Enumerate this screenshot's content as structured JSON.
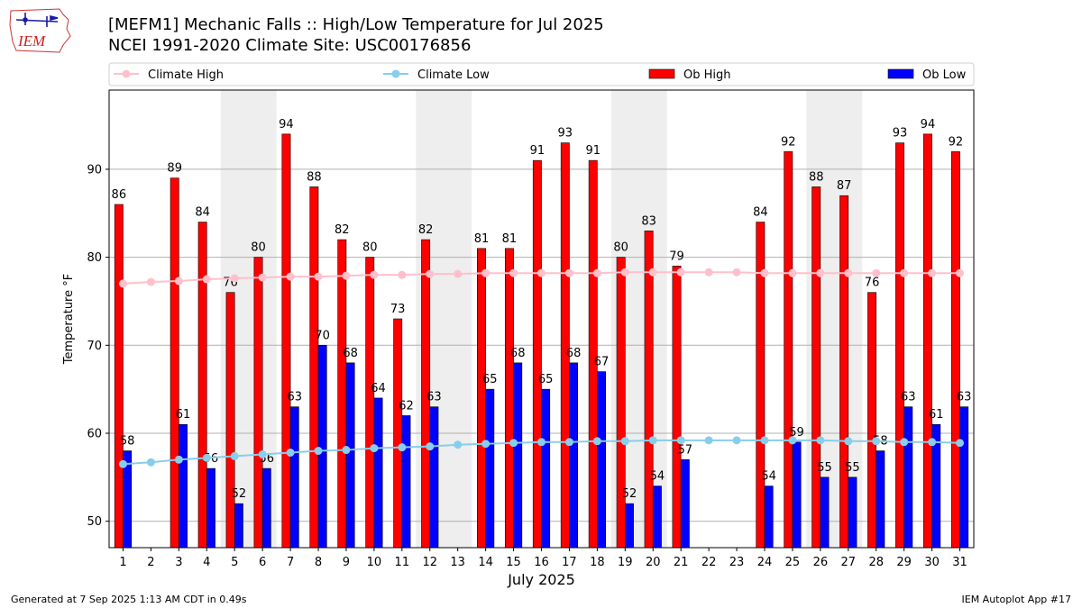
{
  "logo_text": "IEM",
  "title_line1": "[MEFM1] Mechanic Falls :: High/Low Temperature for Jul 2025",
  "title_line2": "NCEI 1991-2020 Climate Site: USC00176856",
  "footer_left": "Generated at 7 Sep 2025 1:13 AM CDT in 0.49s",
  "footer_right": "IEM Autoplot App #17",
  "colors": {
    "ob_high": "#ff0000",
    "ob_low": "#0000ff",
    "climate_high": "#ffc0cb",
    "climate_low": "#87ceeb",
    "weekend_shade": "#eeeeee",
    "grid": "#b0b0b0"
  },
  "chart_data": {
    "type": "bar",
    "xlabel": "July 2025",
    "ylabel": "Temperature °F",
    "ylim": [
      47,
      99
    ],
    "yticks": [
      50,
      60,
      70,
      80,
      90
    ],
    "grid": "horizontal",
    "legend_position": "top",
    "categories": [
      "1",
      "2",
      "3",
      "4",
      "5",
      "6",
      "7",
      "8",
      "9",
      "10",
      "11",
      "12",
      "13",
      "14",
      "15",
      "16",
      "17",
      "18",
      "19",
      "20",
      "21",
      "22",
      "23",
      "24",
      "25",
      "26",
      "27",
      "28",
      "29",
      "30",
      "31"
    ],
    "shaded_days": [
      [
        5,
        6
      ],
      [
        12,
        13
      ],
      [
        19,
        20
      ],
      [
        26,
        27
      ]
    ],
    "series": [
      {
        "name": "Climate High",
        "kind": "line",
        "values": [
          77.0,
          77.2,
          77.3,
          77.5,
          77.6,
          77.7,
          77.8,
          77.8,
          77.9,
          78.0,
          78.0,
          78.1,
          78.1,
          78.2,
          78.2,
          78.2,
          78.2,
          78.2,
          78.3,
          78.3,
          78.3,
          78.3,
          78.3,
          78.2,
          78.2,
          78.2,
          78.2,
          78.2,
          78.2,
          78.2,
          78.2
        ]
      },
      {
        "name": "Climate Low",
        "kind": "line",
        "values": [
          56.5,
          56.7,
          57.0,
          57.2,
          57.4,
          57.6,
          57.8,
          58.0,
          58.1,
          58.3,
          58.4,
          58.5,
          58.7,
          58.8,
          58.9,
          59.0,
          59.0,
          59.1,
          59.1,
          59.2,
          59.2,
          59.2,
          59.2,
          59.2,
          59.2,
          59.2,
          59.1,
          59.1,
          59.0,
          59.0,
          58.9
        ]
      },
      {
        "name": "Ob High",
        "kind": "bar",
        "values": [
          86,
          null,
          89,
          84,
          76,
          80,
          94,
          88,
          82,
          80,
          73,
          82,
          null,
          81,
          81,
          91,
          93,
          91,
          80,
          83,
          79,
          null,
          null,
          84,
          92,
          88,
          87,
          76,
          93,
          94,
          92
        ]
      },
      {
        "name": "Ob Low",
        "kind": "bar",
        "values": [
          58,
          null,
          61,
          56,
          52,
          56,
          63,
          70,
          68,
          64,
          62,
          63,
          null,
          65,
          68,
          65,
          68,
          67,
          52,
          54,
          57,
          null,
          null,
          54,
          59,
          55,
          55,
          58,
          63,
          61,
          63
        ]
      }
    ]
  }
}
